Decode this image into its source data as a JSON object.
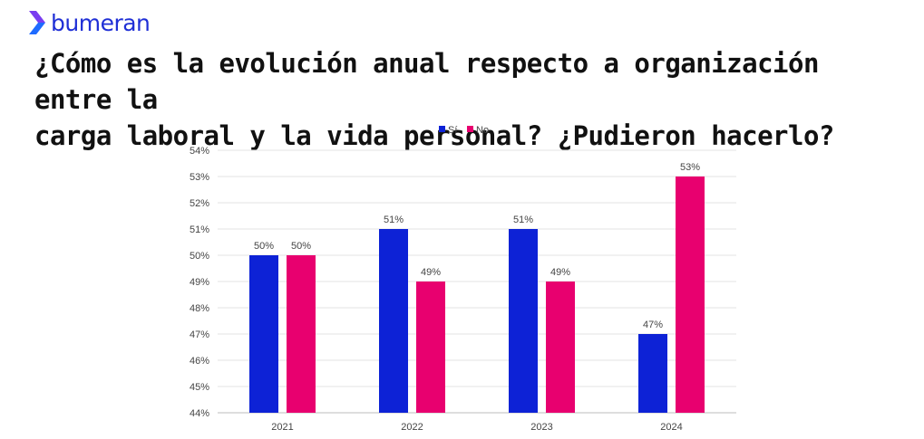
{
  "brand": {
    "name": "bumeran",
    "accent": "#1f2fd6",
    "mark_color_top": "#7a3cf0",
    "mark_color_bottom": "#1f6bff"
  },
  "title_lines": [
    "¿Cómo es la evolución anual respecto a organización entre la",
    "carga laboral y la vida personal? ¿Pudieron hacerlo?"
  ],
  "chart_data": {
    "type": "bar",
    "categories": [
      "2021",
      "2022",
      "2023",
      "2024"
    ],
    "series": [
      {
        "name": "Sí",
        "color": "#0d22d6",
        "values": [
          50,
          51,
          51,
          47
        ],
        "labels": [
          "50%",
          "51%",
          "51%",
          "47%"
        ]
      },
      {
        "name": "No",
        "color": "#e8006f",
        "values": [
          50,
          49,
          49,
          53
        ],
        "labels": [
          "50%",
          "49%",
          "49%",
          "53%"
        ]
      }
    ],
    "ylim": [
      44,
      54
    ],
    "yticks": [
      "44%",
      "45%",
      "46%",
      "47%",
      "48%",
      "49%",
      "50%",
      "51%",
      "52%",
      "53%",
      "54%"
    ],
    "legend_position": "top-center",
    "grid": true
  }
}
